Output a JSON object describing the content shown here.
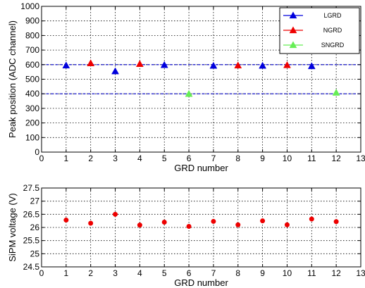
{
  "chart_data": [
    {
      "type": "scatter",
      "title": "",
      "xlabel": "GRD number",
      "ylabel": "Peak position (ADC channel)",
      "xlim": [
        0,
        13
      ],
      "ylim": [
        0,
        1000
      ],
      "xticks": [
        "0",
        "1",
        "2",
        "3",
        "4",
        "5",
        "6",
        "7",
        "8",
        "9",
        "10",
        "11",
        "12",
        "13"
      ],
      "yticks": [
        "0",
        "100",
        "200",
        "300",
        "400",
        "500",
        "600",
        "700",
        "800",
        "900",
        "1000"
      ],
      "grid": true,
      "legend_position": "top-right",
      "reference_lines": [
        {
          "y": 600,
          "color": "#0000cc",
          "style": "dashed"
        },
        {
          "y": 400,
          "color": "#0000cc",
          "style": "dashed"
        }
      ],
      "series": [
        {
          "name": "LGRD",
          "color": "#0000dd",
          "marker": "triangle",
          "x": [
            1,
            3,
            5,
            7,
            9,
            11
          ],
          "y": [
            595,
            555,
            598,
            593,
            593,
            590
          ]
        },
        {
          "name": "NGRD",
          "color": "#ee0000",
          "marker": "triangle",
          "x": [
            2,
            4,
            8,
            10
          ],
          "y": [
            610,
            605,
            595,
            597
          ]
        },
        {
          "name": "SNGRD",
          "color": "#66ee55",
          "marker": "triangle",
          "x": [
            6,
            12
          ],
          "y": [
            400,
            408
          ]
        }
      ]
    },
    {
      "type": "scatter",
      "title": "",
      "xlabel": "GRD number",
      "ylabel": "SiPM voltage (V)",
      "xlim": [
        0,
        13
      ],
      "ylim": [
        24.5,
        27.5
      ],
      "xticks": [
        "0",
        "1",
        "2",
        "3",
        "4",
        "5",
        "6",
        "7",
        "8",
        "9",
        "10",
        "11",
        "12",
        "13"
      ],
      "yticks": [
        "24.5",
        "25",
        "25.5",
        "26",
        "26.5",
        "27",
        "27.5"
      ],
      "grid": true,
      "series": [
        {
          "color": "#ee0000",
          "marker": "circle",
          "x": [
            1,
            2,
            3,
            4,
            5,
            6,
            7,
            8,
            9,
            10,
            11,
            12
          ],
          "y": [
            26.28,
            26.16,
            26.5,
            26.09,
            26.2,
            26.04,
            26.23,
            26.1,
            26.25,
            26.1,
            26.32,
            26.22
          ]
        }
      ]
    }
  ]
}
